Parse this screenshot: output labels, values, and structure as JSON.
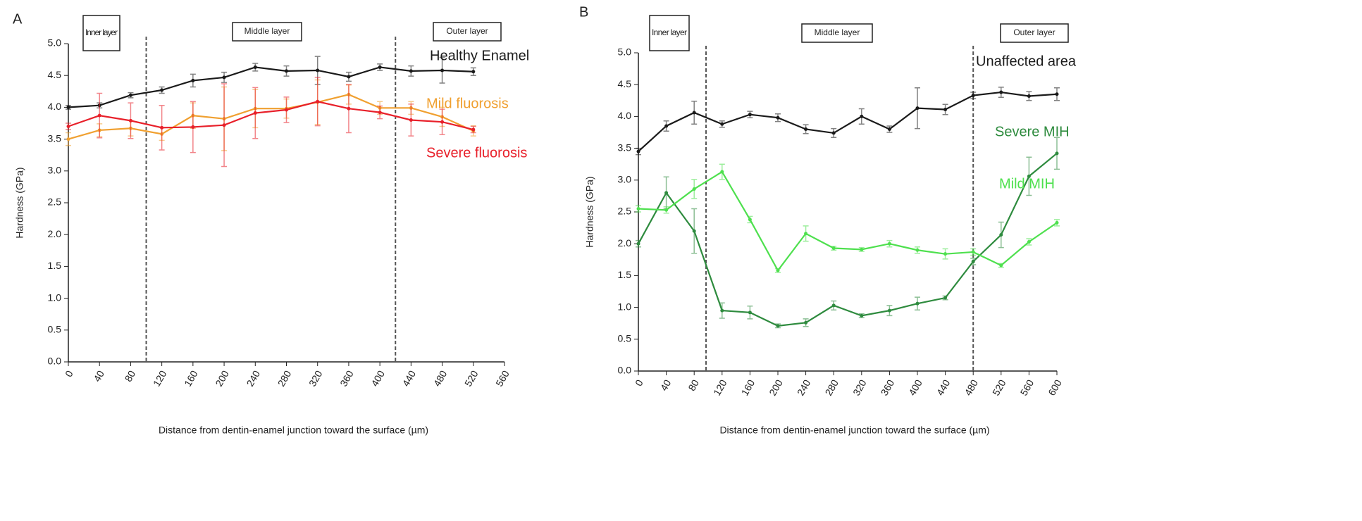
{
  "chart_data": [
    {
      "type": "line",
      "panel_label": "A",
      "x_label": "Distance from dentin-enamel junction toward the surface (µm)",
      "y_label": "Hardness (GPa)",
      "xlim": [
        0,
        560
      ],
      "ylim": [
        0,
        5
      ],
      "xticks": [
        0,
        40,
        80,
        120,
        160,
        200,
        240,
        280,
        320,
        360,
        400,
        440,
        480,
        520,
        560
      ],
      "yticks": [
        {
          "value": 0,
          "label": "0.0"
        },
        0.5,
        {
          "value": 1,
          "label": "1.0"
        },
        1.5,
        {
          "value": 2,
          "label": "2.0"
        },
        2.5,
        {
          "value": 3,
          "label": "3.0"
        },
        3.5,
        {
          "value": 4,
          "label": "4.0"
        },
        4.5,
        {
          "value": 5,
          "label": "5.0"
        }
      ],
      "layers": [
        "Inner layer",
        "Middle layer",
        "Outer layer"
      ],
      "boundaries": [
        100,
        420
      ],
      "x": [
        0,
        40,
        80,
        120,
        160,
        200,
        240,
        280,
        320,
        360,
        400,
        440,
        480,
        520
      ],
      "series": [
        {
          "name": "Healthy Enamel",
          "color": "#1a1a1a",
          "values": [
            4.0,
            4.03,
            4.19,
            4.27,
            4.42,
            4.47,
            4.63,
            4.57,
            4.58,
            4.48,
            4.63,
            4.57,
            4.58,
            4.56
          ],
          "errors": [
            0.03,
            0.04,
            0.04,
            0.05,
            0.1,
            0.08,
            0.06,
            0.08,
            0.22,
            0.07,
            0.05,
            0.08,
            0.2,
            0.06
          ]
        },
        {
          "name": "Mild fluorosis",
          "color": "#f0a030",
          "values": [
            3.5,
            3.64,
            3.67,
            3.58,
            3.87,
            3.82,
            3.98,
            3.98,
            4.08,
            4.2,
            3.99,
            3.99,
            3.85,
            3.63
          ],
          "errors": [
            0.1,
            0.1,
            0.12,
            0.1,
            0.2,
            0.5,
            0.3,
            0.15,
            0.35,
            0.15,
            0.1,
            0.1,
            0.15,
            0.08
          ]
        },
        {
          "name": "Severe fluorosis",
          "color": "#e8202a",
          "values": [
            3.7,
            3.87,
            3.79,
            3.68,
            3.69,
            3.72,
            3.91,
            3.96,
            4.09,
            3.98,
            3.92,
            3.8,
            3.77,
            3.65
          ],
          "errors": [
            0.05,
            0.35,
            0.28,
            0.35,
            0.4,
            0.65,
            0.4,
            0.2,
            0.38,
            0.38,
            0.1,
            0.25,
            0.2,
            0.05
          ]
        }
      ]
    },
    {
      "type": "line",
      "panel_label": "B",
      "x_label": "Distance from dentin-enamel junction toward the surface (µm)",
      "y_label": "Hardness (GPa)",
      "xlim": [
        0,
        600
      ],
      "ylim": [
        0,
        5
      ],
      "xticks": [
        0,
        40,
        80,
        120,
        160,
        200,
        240,
        280,
        320,
        360,
        400,
        440,
        480,
        520,
        560,
        600
      ],
      "yticks": [
        {
          "value": 0,
          "label": "0.0"
        },
        0.5,
        {
          "value": 1,
          "label": "1.0"
        },
        1.5,
        {
          "value": 2,
          "label": "2.0"
        },
        2.5,
        {
          "value": 3,
          "label": "3.0"
        },
        3.5,
        {
          "value": 4,
          "label": "4.0"
        },
        4.5,
        {
          "value": 5,
          "label": "5.0"
        }
      ],
      "layers": [
        "Inner layer",
        "Middle layer",
        "Outer layer"
      ],
      "boundaries": [
        97,
        480
      ],
      "x": [
        0,
        40,
        80,
        120,
        160,
        200,
        240,
        280,
        320,
        360,
        400,
        440,
        480,
        520,
        560,
        600
      ],
      "series": [
        {
          "name": "Unaffected area",
          "color": "#1a1a1a",
          "values": [
            3.45,
            3.85,
            4.06,
            3.88,
            4.03,
            3.98,
            3.8,
            3.74,
            4.0,
            3.8,
            4.13,
            4.11,
            4.33,
            4.38,
            4.32,
            4.35
          ],
          "errors": [
            0.05,
            0.08,
            0.18,
            0.05,
            0.05,
            0.06,
            0.07,
            0.07,
            0.12,
            0.05,
            0.32,
            0.08,
            0.05,
            0.08,
            0.07,
            0.1
          ]
        },
        {
          "name": "Severe MIH",
          "color": "#2e8b3e",
          "values": [
            2.0,
            2.8,
            2.2,
            0.95,
            0.92,
            0.71,
            0.76,
            1.03,
            0.87,
            0.95,
            1.06,
            1.15,
            1.72,
            2.14,
            3.06,
            3.42
          ],
          "errors": [
            0.05,
            0.25,
            0.35,
            0.12,
            0.1,
            0.03,
            0.06,
            0.07,
            0.03,
            0.08,
            0.1,
            0.03,
            0.05,
            0.2,
            0.3,
            0.25
          ]
        },
        {
          "name": "Mild MIH",
          "color": "#4ee04e",
          "values": [
            2.55,
            2.53,
            2.86,
            3.13,
            2.38,
            1.58,
            2.16,
            1.93,
            1.91,
            2.0,
            1.9,
            1.84,
            1.87,
            1.66,
            2.03,
            2.33
          ],
          "errors": [
            0.05,
            0.05,
            0.15,
            0.12,
            0.05,
            0.03,
            0.12,
            0.03,
            0.03,
            0.05,
            0.05,
            0.08,
            0.05,
            0.03,
            0.05,
            0.05
          ]
        }
      ]
    }
  ]
}
